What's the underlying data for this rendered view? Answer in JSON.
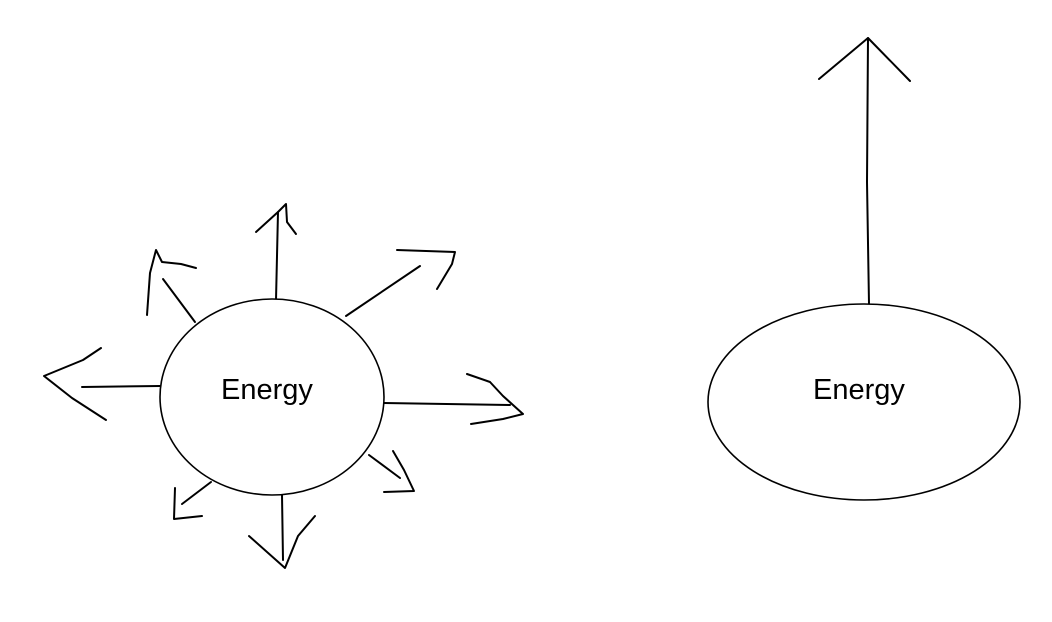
{
  "diagrams": {
    "left": {
      "label": "Energy"
    },
    "right": {
      "label": "Energy"
    }
  },
  "colors": {
    "background": "#ffffff",
    "stroke": "#000000"
  }
}
